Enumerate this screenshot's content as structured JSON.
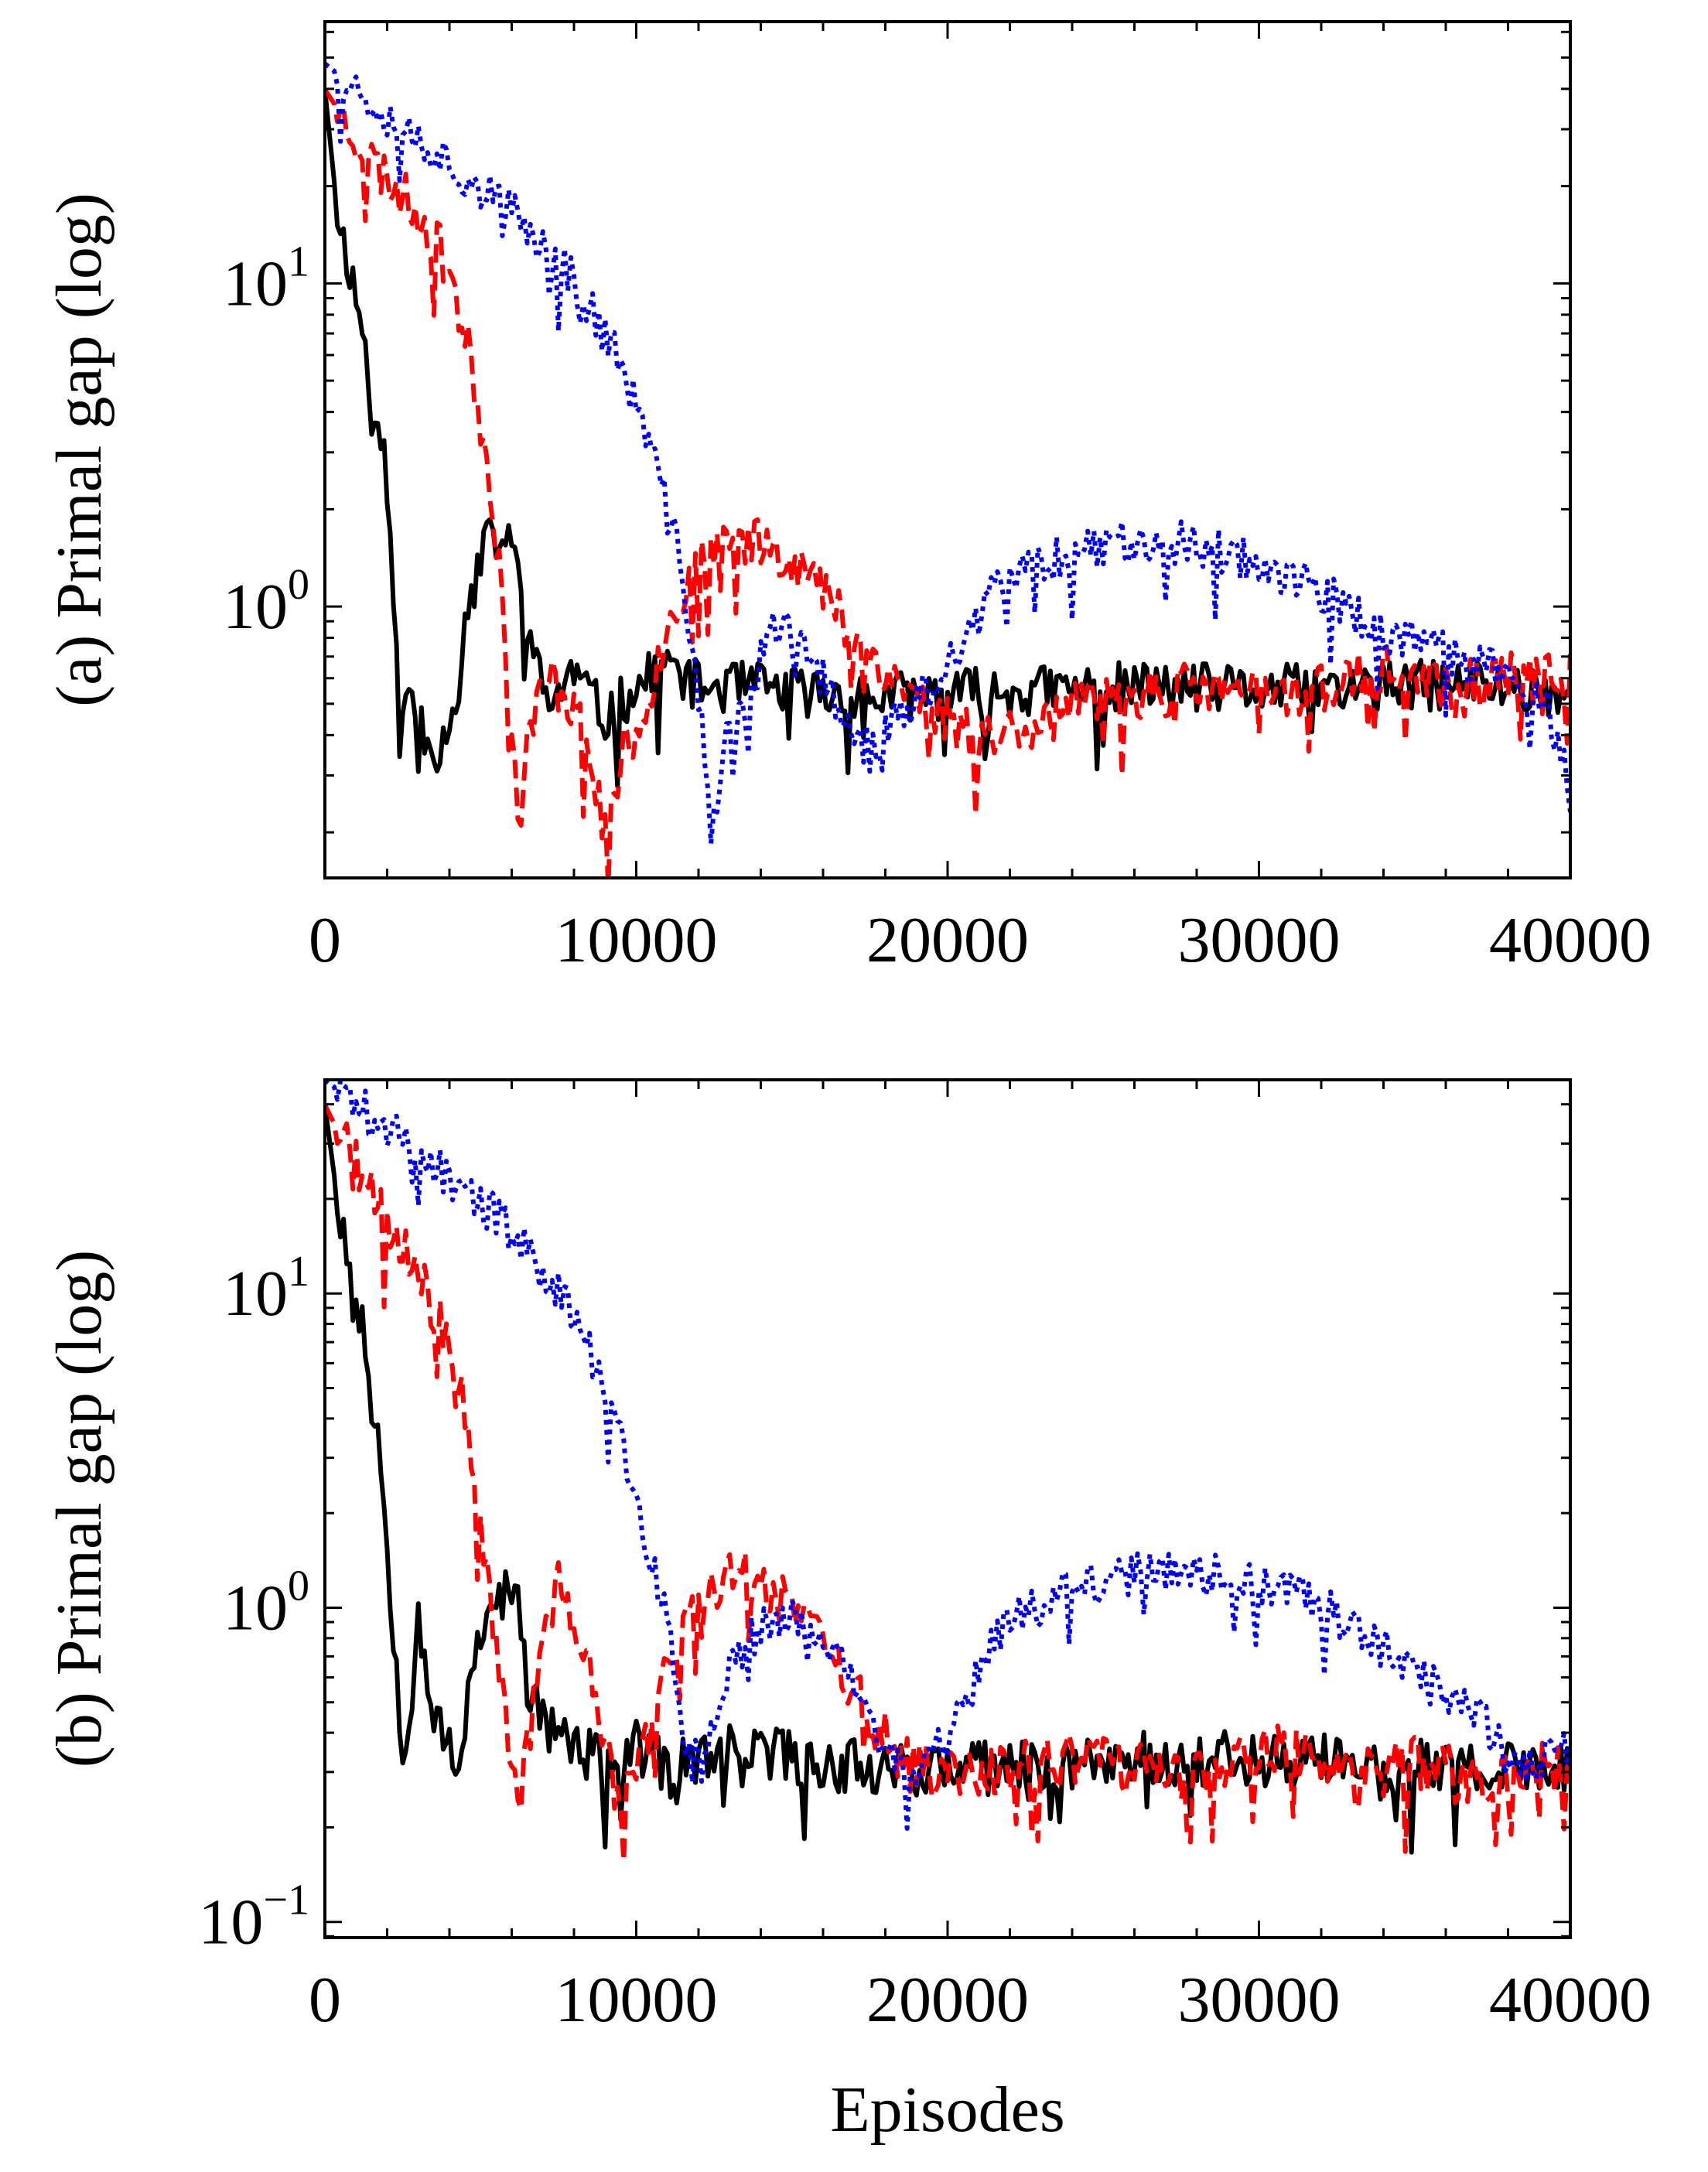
{
  "chart_data": [
    {
      "type": "line",
      "panel": "a",
      "ylabel": "(a) Primal gap (log)",
      "xlabel": "",
      "xlim": [
        0,
        40000
      ],
      "ylog_lim": [
        -0.84,
        1.81
      ],
      "xticks": [
        0,
        10000,
        20000,
        30000,
        40000
      ],
      "xtick_labels": [
        "0",
        "10000",
        "20000",
        "30000",
        "40000"
      ],
      "yticks_log": [
        0,
        1
      ],
      "ytick_bases": [
        "10",
        "10"
      ],
      "ytick_exps": [
        "0",
        "1"
      ],
      "series": [
        {
          "name": "black-solid",
          "color": "#000000",
          "dash": "",
          "anchors": [
            [
              0,
              1.6
            ],
            [
              400,
              1.22
            ],
            [
              800,
              1.05
            ],
            [
              1200,
              0.86
            ],
            [
              1600,
              0.6
            ],
            [
              2000,
              0.42
            ],
            [
              2200,
              0.08
            ],
            [
              2400,
              -0.43
            ],
            [
              2700,
              -0.25
            ],
            [
              3200,
              -0.38
            ],
            [
              3700,
              -0.45
            ],
            [
              4200,
              -0.26
            ],
            [
              4800,
              0.12
            ],
            [
              5400,
              0.22
            ],
            [
              6000,
              0.18
            ],
            [
              6400,
              0.02
            ],
            [
              6800,
              -0.2
            ],
            [
              7200,
              -0.3
            ],
            [
              8000,
              -0.2
            ],
            [
              9000,
              -0.35
            ],
            [
              10000,
              -0.25
            ],
            [
              11000,
              -0.18
            ],
            [
              12000,
              -0.25
            ],
            [
              14000,
              -0.25
            ],
            [
              16000,
              -0.27
            ],
            [
              18000,
              -0.28
            ],
            [
              20000,
              -0.27
            ],
            [
              23000,
              -0.26
            ],
            [
              26000,
              -0.25
            ],
            [
              30000,
              -0.26
            ],
            [
              34000,
              -0.25
            ],
            [
              37000,
              -0.24
            ],
            [
              40000,
              -0.27
            ]
          ],
          "noise": 0.08,
          "seed": 11
        },
        {
          "name": "red-dashed",
          "color": "#ff0000",
          "dash": "24 12",
          "anchors": [
            [
              0,
              1.6
            ],
            [
              1500,
              1.38
            ],
            [
              3000,
              1.22
            ],
            [
              4000,
              1.05
            ],
            [
              4700,
              0.75
            ],
            [
              5300,
              0.4
            ],
            [
              5700,
              0.05
            ],
            [
              6000,
              -0.4
            ],
            [
              6200,
              -0.68
            ],
            [
              6600,
              -0.35
            ],
            [
              7200,
              -0.22
            ],
            [
              8000,
              -0.3
            ],
            [
              8600,
              -0.5
            ],
            [
              9000,
              -0.7
            ],
            [
              9600,
              -0.45
            ],
            [
              10200,
              -0.35
            ],
            [
              11000,
              -0.05
            ],
            [
              12000,
              0.12
            ],
            [
              13000,
              0.19
            ],
            [
              14000,
              0.21
            ],
            [
              15000,
              0.15
            ],
            [
              16000,
              0.05
            ],
            [
              17000,
              -0.08
            ],
            [
              18000,
              -0.2
            ],
            [
              19000,
              -0.28
            ],
            [
              20000,
              -0.35
            ],
            [
              21000,
              -0.4
            ],
            [
              22000,
              -0.38
            ],
            [
              24000,
              -0.32
            ],
            [
              26000,
              -0.27
            ],
            [
              28000,
              -0.25
            ],
            [
              30000,
              -0.27
            ],
            [
              32000,
              -0.25
            ],
            [
              34000,
              -0.2
            ],
            [
              36000,
              -0.25
            ],
            [
              38000,
              -0.22
            ],
            [
              40000,
              -0.22
            ]
          ],
          "noise": 0.08,
          "seed": 23
        },
        {
          "name": "blue-dotted",
          "color": "#0000ff",
          "dash": "6 7",
          "anchors": [
            [
              0,
              1.68
            ],
            [
              3000,
              1.45
            ],
            [
              6000,
              1.22
            ],
            [
              8000,
              1.02
            ],
            [
              9500,
              0.75
            ],
            [
              10500,
              0.48
            ],
            [
              11300,
              0.18
            ],
            [
              11800,
              -0.1
            ],
            [
              12200,
              -0.45
            ],
            [
              12400,
              -0.75
            ],
            [
              12800,
              -0.45
            ],
            [
              13500,
              -0.3
            ],
            [
              14500,
              -0.05
            ],
            [
              15500,
              -0.15
            ],
            [
              16500,
              -0.3
            ],
            [
              17500,
              -0.45
            ],
            [
              18300,
              -0.35
            ],
            [
              19000,
              -0.3
            ],
            [
              20000,
              -0.2
            ],
            [
              21000,
              0.0
            ],
            [
              22500,
              0.12
            ],
            [
              24000,
              0.17
            ],
            [
              26000,
              0.21
            ],
            [
              28000,
              0.19
            ],
            [
              30000,
              0.14
            ],
            [
              32000,
              0.04
            ],
            [
              34000,
              -0.08
            ],
            [
              36000,
              -0.15
            ],
            [
              38000,
              -0.2
            ],
            [
              39500,
              -0.35
            ],
            [
              40000,
              -0.6
            ]
          ],
          "noise": 0.07,
          "seed": 37
        }
      ]
    },
    {
      "type": "line",
      "panel": "b",
      "ylabel": "(b) Primal gap (log)",
      "xlabel": "Episodes",
      "xlim": [
        0,
        40000
      ],
      "ylog_lim": [
        -1.05,
        1.68
      ],
      "xticks": [
        0,
        10000,
        20000,
        30000,
        40000
      ],
      "xtick_labels": [
        "0",
        "10000",
        "20000",
        "30000",
        "40000"
      ],
      "yticks_log": [
        -1,
        0,
        1
      ],
      "ytick_bases": [
        "10",
        "10",
        "10"
      ],
      "ytick_exps": [
        "−1",
        "0",
        "1"
      ],
      "series": [
        {
          "name": "black-solid",
          "color": "#000000",
          "dash": "",
          "anchors": [
            [
              0,
              1.6
            ],
            [
              400,
              1.3
            ],
            [
              900,
              1.05
            ],
            [
              1400,
              0.8
            ],
            [
              1800,
              0.45
            ],
            [
              2200,
              -0.05
            ],
            [
              2500,
              -0.45
            ],
            [
              2800,
              -0.25
            ],
            [
              3000,
              0.0
            ],
            [
              3400,
              -0.3
            ],
            [
              3800,
              -0.4
            ],
            [
              4200,
              -0.55
            ],
            [
              4700,
              -0.2
            ],
            [
              5200,
              0.0
            ],
            [
              5800,
              0.05
            ],
            [
              6200,
              0.0
            ],
            [
              6500,
              -0.25
            ],
            [
              7000,
              -0.35
            ],
            [
              8000,
              -0.45
            ],
            [
              9000,
              -0.5
            ],
            [
              10000,
              -0.45
            ],
            [
              11000,
              -0.52
            ],
            [
              12000,
              -0.48
            ],
            [
              14000,
              -0.45
            ],
            [
              16000,
              -0.5
            ],
            [
              18000,
              -0.5
            ],
            [
              20000,
              -0.52
            ],
            [
              23000,
              -0.5
            ],
            [
              26000,
              -0.48
            ],
            [
              30000,
              -0.48
            ],
            [
              34000,
              -0.5
            ],
            [
              38000,
              -0.52
            ],
            [
              40000,
              -0.5
            ]
          ],
          "noise": 0.09,
          "seed": 53
        },
        {
          "name": "red-dashed",
          "color": "#ff0000",
          "dash": "24 12",
          "anchors": [
            [
              0,
              1.6
            ],
            [
              1500,
              1.3
            ],
            [
              3000,
              1.05
            ],
            [
              4000,
              0.85
            ],
            [
              4800,
              0.45
            ],
            [
              5400,
              -0.05
            ],
            [
              5900,
              -0.45
            ],
            [
              6300,
              -0.6
            ],
            [
              6800,
              -0.2
            ],
            [
              7200,
              -0.05
            ],
            [
              7500,
              0.1
            ],
            [
              8000,
              -0.05
            ],
            [
              8600,
              -0.25
            ],
            [
              9200,
              -0.55
            ],
            [
              9700,
              -0.6
            ],
            [
              10500,
              -0.35
            ],
            [
              11500,
              -0.05
            ],
            [
              12500,
              0.08
            ],
            [
              13500,
              0.1
            ],
            [
              14500,
              0.06
            ],
            [
              15500,
              -0.05
            ],
            [
              16500,
              -0.2
            ],
            [
              17500,
              -0.35
            ],
            [
              18500,
              -0.48
            ],
            [
              19500,
              -0.55
            ],
            [
              21000,
              -0.52
            ],
            [
              23000,
              -0.5
            ],
            [
              25000,
              -0.48
            ],
            [
              27000,
              -0.55
            ],
            [
              29000,
              -0.5
            ],
            [
              31000,
              -0.45
            ],
            [
              33000,
              -0.55
            ],
            [
              35000,
              -0.5
            ],
            [
              37000,
              -0.55
            ],
            [
              40000,
              -0.5
            ]
          ],
          "noise": 0.09,
          "seed": 71
        },
        {
          "name": "blue-dotted",
          "color": "#0000ff",
          "dash": "6 7",
          "anchors": [
            [
              0,
              1.68
            ],
            [
              3000,
              1.45
            ],
            [
              6000,
              1.2
            ],
            [
              8000,
              0.95
            ],
            [
              9500,
              0.55
            ],
            [
              10500,
              0.15
            ],
            [
              11000,
              -0.05
            ],
            [
              11500,
              -0.4
            ],
            [
              12200,
              -0.5
            ],
            [
              13000,
              -0.2
            ],
            [
              14000,
              -0.05
            ],
            [
              15000,
              -0.03
            ],
            [
              16000,
              -0.1
            ],
            [
              17000,
              -0.25
            ],
            [
              18000,
              -0.4
            ],
            [
              19000,
              -0.55
            ],
            [
              20000,
              -0.4
            ],
            [
              21000,
              -0.2
            ],
            [
              22000,
              -0.05
            ],
            [
              23500,
              0.05
            ],
            [
              25000,
              0.08
            ],
            [
              27000,
              0.12
            ],
            [
              29000,
              0.1
            ],
            [
              31000,
              0.05
            ],
            [
              33000,
              -0.05
            ],
            [
              35000,
              -0.2
            ],
            [
              37000,
              -0.35
            ],
            [
              38500,
              -0.5
            ],
            [
              40000,
              -0.45
            ]
          ],
          "noise": 0.07,
          "seed": 89
        }
      ]
    }
  ]
}
